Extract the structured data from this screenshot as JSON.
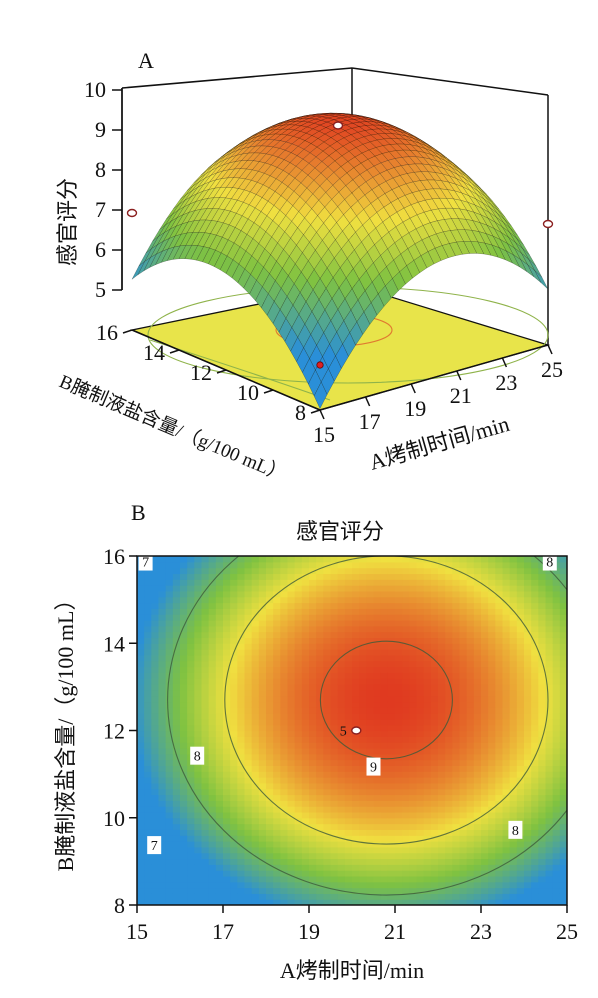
{
  "chart_data": [
    {
      "panel_label": "A",
      "type": "surface",
      "zlabel": "感官评分",
      "xlabel": "A烤制时间/min",
      "ylabel": "B腌制液盐含量/（g/100 mL）",
      "x_ticks": [
        "15",
        "17",
        "19",
        "21",
        "23",
        "25"
      ],
      "y_ticks": [
        "8",
        "10",
        "12",
        "14",
        "16"
      ],
      "z_ticks": [
        "5",
        "6",
        "7",
        "8",
        "9",
        "10"
      ],
      "xlim": [
        15,
        25
      ],
      "ylim": [
        8,
        16
      ],
      "zlim": [
        5,
        10
      ],
      "model": {
        "a0": 9.2,
        "x_center": 20.8,
        "y_center": 12.7,
        "kx": 0.085,
        "ky": 0.11,
        "kxy": 0.0
      },
      "design_points": [
        {
          "x": 20,
          "y": 12,
          "z": 9.3
        },
        {
          "x": 15,
          "y": 16,
          "z": 6.8
        },
        {
          "x": 25,
          "y": 8,
          "z": 6.9
        },
        {
          "x": 15,
          "y": 8,
          "z": 5.0
        }
      ]
    },
    {
      "panel_label": "B",
      "type": "contour",
      "title": "感官评分",
      "xlabel": "A烤制时间/min",
      "ylabel": "B腌制液盐含量/（g/100 mL）",
      "x_ticks": [
        "15",
        "17",
        "19",
        "21",
        "23",
        "25"
      ],
      "y_ticks": [
        "8",
        "10",
        "12",
        "14",
        "16"
      ],
      "xlim": [
        15,
        25
      ],
      "ylim": [
        8,
        16
      ],
      "contour_levels": [
        7,
        8,
        9
      ],
      "contour_labels": [
        {
          "text": "7",
          "x": 15.2,
          "y": 15.85
        },
        {
          "text": "7",
          "x": 15.4,
          "y": 9.35
        },
        {
          "text": "8",
          "x": 16.4,
          "y": 11.4
        },
        {
          "text": "8",
          "x": 24.6,
          "y": 15.85
        },
        {
          "text": "8",
          "x": 23.8,
          "y": 9.7
        },
        {
          "text": "9",
          "x": 20.5,
          "y": 11.15
        }
      ],
      "center_point": {
        "x": 20.1,
        "y": 12.0,
        "label": "5"
      }
    }
  ],
  "colors": {
    "low": "#2a8fd8",
    "mid_low": "#7fc241",
    "mid": "#f0e040",
    "high": "#e03a20",
    "floor": "#e8e44a"
  }
}
